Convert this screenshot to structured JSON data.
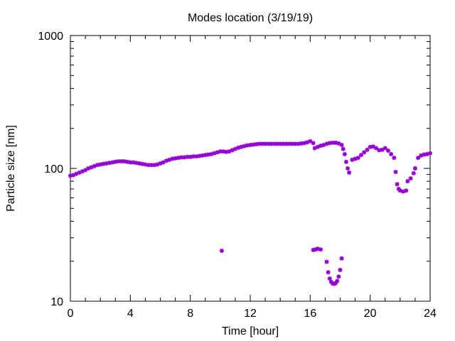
{
  "chart_data": {
    "type": "scatter",
    "title": "Modes location (3/19/19)",
    "xlabel": "Time [hour]",
    "ylabel": "Particle size [nm]",
    "xlim": [
      0,
      24
    ],
    "ylim": [
      10,
      1000
    ],
    "yscale": "log",
    "grid": false,
    "legend": "none",
    "marker_color": "#9400d3",
    "marker": "asterisk",
    "x_ticks": [
      "0",
      "4",
      "8",
      "12",
      "16",
      "20",
      "24"
    ],
    "y_ticks": [
      "10",
      "100",
      "1000"
    ],
    "series": [
      {
        "points": [
          [
            0.0,
            88
          ],
          [
            0.2,
            89
          ],
          [
            0.4,
            91
          ],
          [
            0.6,
            93
          ],
          [
            0.8,
            95
          ],
          [
            1.0,
            97
          ],
          [
            1.2,
            100
          ],
          [
            1.4,
            102
          ],
          [
            1.6,
            104
          ],
          [
            1.8,
            106
          ],
          [
            2.0,
            107
          ],
          [
            2.2,
            108
          ],
          [
            2.4,
            109
          ],
          [
            2.6,
            110
          ],
          [
            2.8,
            111
          ],
          [
            3.0,
            112
          ],
          [
            3.2,
            113
          ],
          [
            3.4,
            113
          ],
          [
            3.6,
            113
          ],
          [
            3.8,
            112
          ],
          [
            4.0,
            111
          ],
          [
            4.2,
            111
          ],
          [
            4.4,
            110
          ],
          [
            4.6,
            109
          ],
          [
            4.8,
            108
          ],
          [
            5.0,
            107
          ],
          [
            5.2,
            106
          ],
          [
            5.4,
            106
          ],
          [
            5.6,
            106
          ],
          [
            5.8,
            107
          ],
          [
            6.0,
            109
          ],
          [
            6.2,
            111
          ],
          [
            6.4,
            114
          ],
          [
            6.6,
            116
          ],
          [
            6.8,
            118
          ],
          [
            7.0,
            119
          ],
          [
            7.2,
            120
          ],
          [
            7.4,
            121
          ],
          [
            7.6,
            121
          ],
          [
            7.8,
            122
          ],
          [
            8.0,
            122
          ],
          [
            8.2,
            123
          ],
          [
            8.4,
            123
          ],
          [
            8.6,
            124
          ],
          [
            8.8,
            125
          ],
          [
            9.0,
            126
          ],
          [
            9.2,
            127
          ],
          [
            9.4,
            128
          ],
          [
            9.6,
            130
          ],
          [
            9.8,
            132
          ],
          [
            10.0,
            134
          ],
          [
            10.2,
            134
          ],
          [
            10.4,
            133
          ],
          [
            10.6,
            134
          ],
          [
            10.8,
            137
          ],
          [
            11.0,
            140
          ],
          [
            11.2,
            143
          ],
          [
            11.4,
            145
          ],
          [
            11.6,
            147
          ],
          [
            11.8,
            149
          ],
          [
            12.0,
            150
          ],
          [
            12.2,
            151
          ],
          [
            12.4,
            152
          ],
          [
            12.6,
            153
          ],
          [
            12.8,
            153
          ],
          [
            13.0,
            153
          ],
          [
            13.2,
            153
          ],
          [
            13.4,
            153
          ],
          [
            13.6,
            153
          ],
          [
            13.8,
            153
          ],
          [
            14.0,
            153
          ],
          [
            14.2,
            153
          ],
          [
            14.4,
            153
          ],
          [
            14.6,
            153
          ],
          [
            14.8,
            153
          ],
          [
            15.0,
            153
          ],
          [
            15.2,
            153
          ],
          [
            15.4,
            154
          ],
          [
            15.6,
            155
          ],
          [
            15.8,
            157
          ],
          [
            16.0,
            160
          ],
          [
            16.2,
            155
          ],
          [
            16.3,
            142
          ],
          [
            16.5,
            145
          ],
          [
            16.7,
            148
          ],
          [
            16.9,
            150
          ],
          [
            17.1,
            153
          ],
          [
            17.3,
            155
          ],
          [
            17.5,
            156
          ],
          [
            17.7,
            156
          ],
          [
            17.9,
            154
          ],
          [
            18.1,
            150
          ],
          [
            18.2,
            140
          ],
          [
            18.3,
            128
          ],
          [
            18.4,
            112
          ],
          [
            18.5,
            100
          ],
          [
            18.6,
            93
          ],
          [
            18.8,
            116
          ],
          [
            19.0,
            118
          ],
          [
            19.2,
            120
          ],
          [
            19.4,
            126
          ],
          [
            19.6,
            132
          ],
          [
            19.8,
            138
          ],
          [
            20.0,
            145
          ],
          [
            20.2,
            146
          ],
          [
            20.4,
            142
          ],
          [
            20.6,
            137
          ],
          [
            20.8,
            138
          ],
          [
            21.0,
            142
          ],
          [
            21.2,
            136
          ],
          [
            21.4,
            128
          ],
          [
            21.6,
            120
          ],
          [
            21.7,
            94
          ],
          [
            21.8,
            76
          ],
          [
            21.9,
            70
          ],
          [
            22.0,
            68
          ],
          [
            22.2,
            67
          ],
          [
            22.4,
            68
          ],
          [
            22.5,
            80
          ],
          [
            22.7,
            84
          ],
          [
            22.9,
            92
          ],
          [
            23.0,
            100
          ],
          [
            23.2,
            120
          ],
          [
            23.4,
            125
          ],
          [
            23.6,
            127
          ],
          [
            23.8,
            128
          ],
          [
            24.0,
            130
          ],
          [
            10.1,
            24
          ],
          [
            16.2,
            24.3
          ],
          [
            16.35,
            24.5
          ],
          [
            16.5,
            24.8
          ],
          [
            16.7,
            24.5
          ],
          [
            17.1,
            19.8
          ],
          [
            17.2,
            16.5
          ],
          [
            17.3,
            14.8
          ],
          [
            17.4,
            14
          ],
          [
            17.5,
            13.6
          ],
          [
            17.6,
            13.5
          ],
          [
            17.7,
            13.7
          ],
          [
            17.8,
            14.2
          ],
          [
            17.9,
            15.3
          ],
          [
            18.0,
            17.2
          ],
          [
            18.1,
            21
          ]
        ]
      }
    ]
  }
}
